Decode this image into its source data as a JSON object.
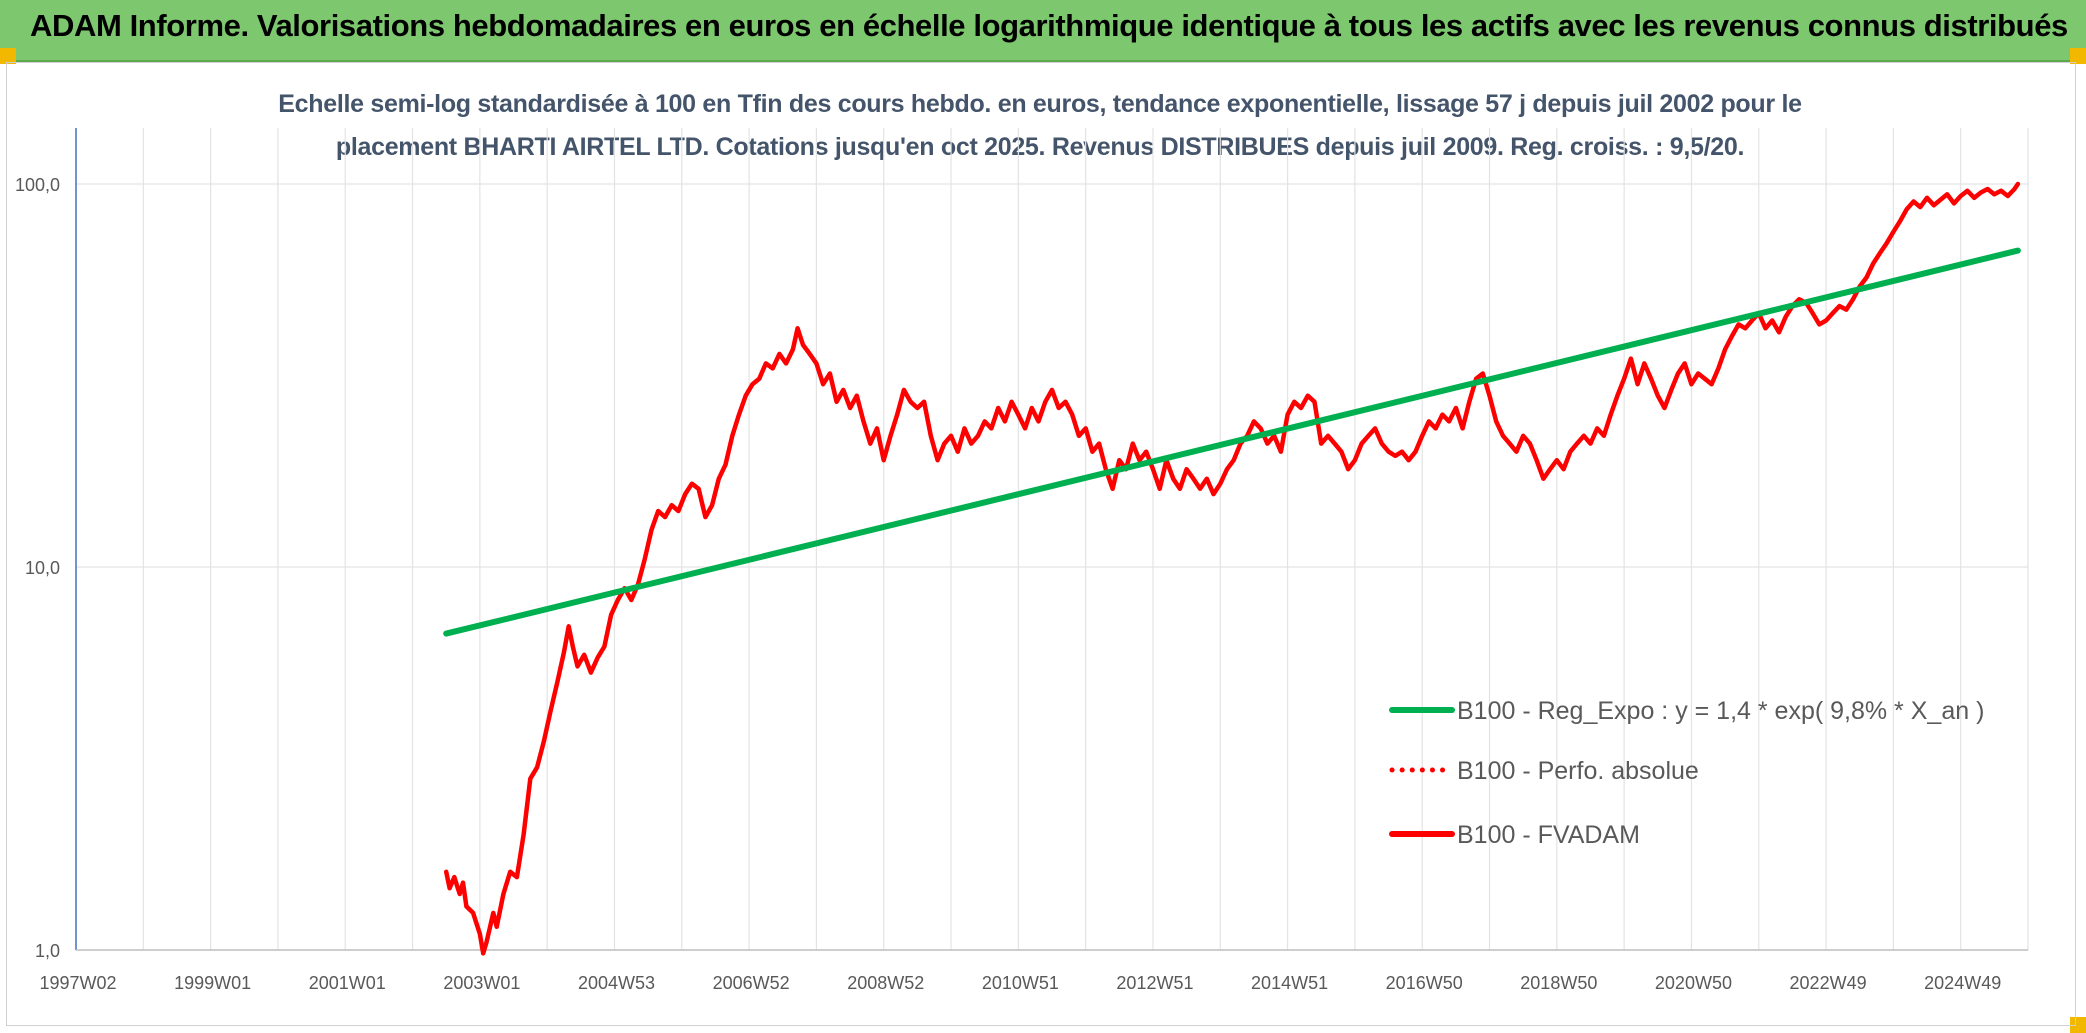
{
  "header": {
    "title": "ADAM Informe. Valorisations hebdomadaires en euros en échelle logarithmique identique à tous les actifs avec les revenus connus distribués"
  },
  "chart_data": {
    "type": "line",
    "title_line1": "Echelle semi-log standardisée à 100 en Tfin des cours hebdo. en euros, tendance exponentielle, lissage 57 j depuis juil 2002 pour le",
    "title_line2": "placement BHARTI AIRTEL LTD. Cotations jusqu'en oct 2025. Revenus DISTRIBUES depuis juil 2009. Reg. croiss. : 9,5/20.",
    "y_scale": "log",
    "ylim": [
      1,
      140
    ],
    "y_ticks": [
      {
        "value": 1,
        "label": "1,0"
      },
      {
        "value": 10,
        "label": "10,0"
      },
      {
        "value": 100,
        "label": "100,0"
      }
    ],
    "xlim": [
      1997.0,
      2026.0
    ],
    "x_ticks": [
      {
        "value": 1997.0,
        "label": "1997W02"
      },
      {
        "value": 1999.0,
        "label": "1999W01"
      },
      {
        "value": 2001.0,
        "label": "2001W01"
      },
      {
        "value": 2003.0,
        "label": "2003W01"
      },
      {
        "value": 2005.0,
        "label": "2004W53"
      },
      {
        "value": 2007.0,
        "label": "2006W52"
      },
      {
        "value": 2009.0,
        "label": "2008W52"
      },
      {
        "value": 2011.0,
        "label": "2010W51"
      },
      {
        "value": 2013.0,
        "label": "2012W51"
      },
      {
        "value": 2015.0,
        "label": "2014W51"
      },
      {
        "value": 2017.0,
        "label": "2016W50"
      },
      {
        "value": 2019.0,
        "label": "2018W50"
      },
      {
        "value": 2021.0,
        "label": "2020W50"
      },
      {
        "value": 2023.0,
        "label": "2022W49"
      },
      {
        "value": 2025.0,
        "label": "2024W49"
      }
    ],
    "legend_position": "right",
    "series": [
      {
        "name": "B100 - Reg_Expo : y = 1,4 * exp( 9,8% *  X_an )",
        "color": "#00b050",
        "style": "solid",
        "points": [
          [
            2002.5,
            6.7
          ],
          [
            2025.85,
            67.0
          ]
        ]
      },
      {
        "name": "B100 - Perfo. absolue",
        "color": "#ff0000",
        "style": "dotted",
        "points": []
      },
      {
        "name": "B100 - FVADAM",
        "color": "#ff0000",
        "style": "solid",
        "points": [
          [
            2002.5,
            1.6
          ],
          [
            2002.55,
            1.45
          ],
          [
            2002.62,
            1.55
          ],
          [
            2002.7,
            1.4
          ],
          [
            2002.75,
            1.5
          ],
          [
            2002.8,
            1.3
          ],
          [
            2002.9,
            1.25
          ],
          [
            2003.0,
            1.1
          ],
          [
            2003.05,
            0.98
          ],
          [
            2003.1,
            1.05
          ],
          [
            2003.2,
            1.25
          ],
          [
            2003.25,
            1.15
          ],
          [
            2003.35,
            1.4
          ],
          [
            2003.45,
            1.6
          ],
          [
            2003.55,
            1.55
          ],
          [
            2003.65,
            2.0
          ],
          [
            2003.75,
            2.8
          ],
          [
            2003.85,
            3.0
          ],
          [
            2003.95,
            3.5
          ],
          [
            2004.05,
            4.2
          ],
          [
            2004.15,
            5.0
          ],
          [
            2004.25,
            6.0
          ],
          [
            2004.32,
            7.0
          ],
          [
            2004.38,
            6.2
          ],
          [
            2004.45,
            5.5
          ],
          [
            2004.55,
            5.9
          ],
          [
            2004.65,
            5.3
          ],
          [
            2004.75,
            5.8
          ],
          [
            2004.85,
            6.2
          ],
          [
            2004.95,
            7.5
          ],
          [
            2005.05,
            8.2
          ],
          [
            2005.15,
            8.8
          ],
          [
            2005.25,
            8.2
          ],
          [
            2005.35,
            9.0
          ],
          [
            2005.45,
            10.5
          ],
          [
            2005.55,
            12.5
          ],
          [
            2005.65,
            14.0
          ],
          [
            2005.75,
            13.5
          ],
          [
            2005.85,
            14.5
          ],
          [
            2005.95,
            14.0
          ],
          [
            2006.05,
            15.5
          ],
          [
            2006.15,
            16.5
          ],
          [
            2006.25,
            16.0
          ],
          [
            2006.35,
            13.5
          ],
          [
            2006.45,
            14.5
          ],
          [
            2006.55,
            17.0
          ],
          [
            2006.65,
            18.5
          ],
          [
            2006.75,
            22.0
          ],
          [
            2006.85,
            25.0
          ],
          [
            2006.95,
            28.0
          ],
          [
            2007.05,
            30.0
          ],
          [
            2007.15,
            31.0
          ],
          [
            2007.25,
            34.0
          ],
          [
            2007.35,
            33.0
          ],
          [
            2007.45,
            36.0
          ],
          [
            2007.55,
            34.0
          ],
          [
            2007.65,
            37.0
          ],
          [
            2007.72,
            42.0
          ],
          [
            2007.8,
            38.0
          ],
          [
            2007.9,
            36.0
          ],
          [
            2008.0,
            34.0
          ],
          [
            2008.1,
            30.0
          ],
          [
            2008.2,
            32.0
          ],
          [
            2008.3,
            27.0
          ],
          [
            2008.4,
            29.0
          ],
          [
            2008.5,
            26.0
          ],
          [
            2008.6,
            28.0
          ],
          [
            2008.7,
            24.0
          ],
          [
            2008.8,
            21.0
          ],
          [
            2008.9,
            23.0
          ],
          [
            2009.0,
            19.0
          ],
          [
            2009.1,
            22.0
          ],
          [
            2009.2,
            25.0
          ],
          [
            2009.3,
            29.0
          ],
          [
            2009.4,
            27.0
          ],
          [
            2009.5,
            26.0
          ],
          [
            2009.6,
            27.0
          ],
          [
            2009.7,
            22.0
          ],
          [
            2009.8,
            19.0
          ],
          [
            2009.9,
            21.0
          ],
          [
            2010.0,
            22.0
          ],
          [
            2010.1,
            20.0
          ],
          [
            2010.2,
            23.0
          ],
          [
            2010.3,
            21.0
          ],
          [
            2010.4,
            22.0
          ],
          [
            2010.5,
            24.0
          ],
          [
            2010.6,
            23.0
          ],
          [
            2010.7,
            26.0
          ],
          [
            2010.8,
            24.0
          ],
          [
            2010.9,
            27.0
          ],
          [
            2011.0,
            25.0
          ],
          [
            2011.1,
            23.0
          ],
          [
            2011.2,
            26.0
          ],
          [
            2011.3,
            24.0
          ],
          [
            2011.4,
            27.0
          ],
          [
            2011.5,
            29.0
          ],
          [
            2011.6,
            26.0
          ],
          [
            2011.7,
            27.0
          ],
          [
            2011.8,
            25.0
          ],
          [
            2011.9,
            22.0
          ],
          [
            2012.0,
            23.0
          ],
          [
            2012.1,
            20.0
          ],
          [
            2012.2,
            21.0
          ],
          [
            2012.3,
            18.0
          ],
          [
            2012.4,
            16.0
          ],
          [
            2012.5,
            19.0
          ],
          [
            2012.6,
            18.0
          ],
          [
            2012.7,
            21.0
          ],
          [
            2012.8,
            19.0
          ],
          [
            2012.9,
            20.0
          ],
          [
            2013.0,
            18.0
          ],
          [
            2013.1,
            16.0
          ],
          [
            2013.2,
            19.0
          ],
          [
            2013.3,
            17.0
          ],
          [
            2013.4,
            16.0
          ],
          [
            2013.5,
            18.0
          ],
          [
            2013.6,
            17.0
          ],
          [
            2013.7,
            16.0
          ],
          [
            2013.8,
            17.0
          ],
          [
            2013.9,
            15.5
          ],
          [
            2014.0,
            16.5
          ],
          [
            2014.1,
            18.0
          ],
          [
            2014.2,
            19.0
          ],
          [
            2014.3,
            21.0
          ],
          [
            2014.4,
            22.0
          ],
          [
            2014.5,
            24.0
          ],
          [
            2014.6,
            23.0
          ],
          [
            2014.7,
            21.0
          ],
          [
            2014.8,
            22.0
          ],
          [
            2014.9,
            20.0
          ],
          [
            2015.0,
            25.0
          ],
          [
            2015.1,
            27.0
          ],
          [
            2015.2,
            26.0
          ],
          [
            2015.3,
            28.0
          ],
          [
            2015.4,
            27.0
          ],
          [
            2015.5,
            21.0
          ],
          [
            2015.6,
            22.0
          ],
          [
            2015.7,
            21.0
          ],
          [
            2015.8,
            20.0
          ],
          [
            2015.9,
            18.0
          ],
          [
            2016.0,
            19.0
          ],
          [
            2016.1,
            21.0
          ],
          [
            2016.2,
            22.0
          ],
          [
            2016.3,
            23.0
          ],
          [
            2016.4,
            21.0
          ],
          [
            2016.5,
            20.0
          ],
          [
            2016.6,
            19.5
          ],
          [
            2016.7,
            20.0
          ],
          [
            2016.8,
            19.0
          ],
          [
            2016.9,
            20.0
          ],
          [
            2017.0,
            22.0
          ],
          [
            2017.1,
            24.0
          ],
          [
            2017.2,
            23.0
          ],
          [
            2017.3,
            25.0
          ],
          [
            2017.4,
            24.0
          ],
          [
            2017.5,
            26.0
          ],
          [
            2017.6,
            23.0
          ],
          [
            2017.7,
            27.0
          ],
          [
            2017.8,
            31.0
          ],
          [
            2017.9,
            32.0
          ],
          [
            2018.0,
            28.0
          ],
          [
            2018.1,
            24.0
          ],
          [
            2018.2,
            22.0
          ],
          [
            2018.3,
            21.0
          ],
          [
            2018.4,
            20.0
          ],
          [
            2018.5,
            22.0
          ],
          [
            2018.6,
            21.0
          ],
          [
            2018.7,
            19.0
          ],
          [
            2018.8,
            17.0
          ],
          [
            2018.9,
            18.0
          ],
          [
            2019.0,
            19.0
          ],
          [
            2019.1,
            18.0
          ],
          [
            2019.2,
            20.0
          ],
          [
            2019.3,
            21.0
          ],
          [
            2019.4,
            22.0
          ],
          [
            2019.5,
            21.0
          ],
          [
            2019.6,
            23.0
          ],
          [
            2019.7,
            22.0
          ],
          [
            2019.8,
            25.0
          ],
          [
            2019.9,
            28.0
          ],
          [
            2020.0,
            31.0
          ],
          [
            2020.1,
            35.0
          ],
          [
            2020.2,
            30.0
          ],
          [
            2020.3,
            34.0
          ],
          [
            2020.4,
            31.0
          ],
          [
            2020.5,
            28.0
          ],
          [
            2020.6,
            26.0
          ],
          [
            2020.7,
            29.0
          ],
          [
            2020.8,
            32.0
          ],
          [
            2020.9,
            34.0
          ],
          [
            2021.0,
            30.0
          ],
          [
            2021.1,
            32.0
          ],
          [
            2021.2,
            31.0
          ],
          [
            2021.3,
            30.0
          ],
          [
            2021.4,
            33.0
          ],
          [
            2021.5,
            37.0
          ],
          [
            2021.6,
            40.0
          ],
          [
            2021.7,
            43.0
          ],
          [
            2021.8,
            42.0
          ],
          [
            2021.9,
            44.0
          ],
          [
            2022.0,
            46.0
          ],
          [
            2022.1,
            42.0
          ],
          [
            2022.2,
            44.0
          ],
          [
            2022.3,
            41.0
          ],
          [
            2022.4,
            45.0
          ],
          [
            2022.5,
            48.0
          ],
          [
            2022.6,
            50.0
          ],
          [
            2022.7,
            49.0
          ],
          [
            2022.8,
            46.0
          ],
          [
            2022.9,
            43.0
          ],
          [
            2023.0,
            44.0
          ],
          [
            2023.1,
            46.0
          ],
          [
            2023.2,
            48.0
          ],
          [
            2023.3,
            47.0
          ],
          [
            2023.4,
            50.0
          ],
          [
            2023.5,
            54.0
          ],
          [
            2023.6,
            57.0
          ],
          [
            2023.7,
            62.0
          ],
          [
            2023.8,
            66.0
          ],
          [
            2023.9,
            70.0
          ],
          [
            2024.0,
            75.0
          ],
          [
            2024.1,
            80.0
          ],
          [
            2024.2,
            86.0
          ],
          [
            2024.3,
            90.0
          ],
          [
            2024.4,
            87.0
          ],
          [
            2024.5,
            92.0
          ],
          [
            2024.6,
            88.0
          ],
          [
            2024.7,
            91.0
          ],
          [
            2024.8,
            94.0
          ],
          [
            2024.9,
            89.0
          ],
          [
            2025.0,
            93.0
          ],
          [
            2025.1,
            96.0
          ],
          [
            2025.2,
            92.0
          ],
          [
            2025.3,
            95.0
          ],
          [
            2025.4,
            97.0
          ],
          [
            2025.5,
            94.0
          ],
          [
            2025.6,
            96.0
          ],
          [
            2025.7,
            93.0
          ],
          [
            2025.8,
            97.0
          ],
          [
            2025.85,
            100.0
          ]
        ]
      }
    ]
  }
}
